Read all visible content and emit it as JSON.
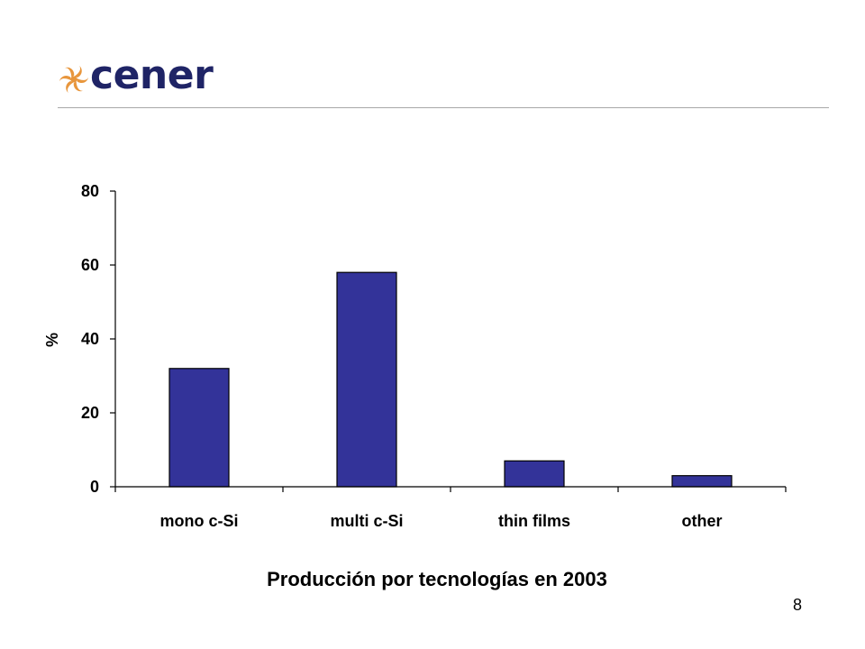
{
  "logo": {
    "text": "cener",
    "icon": "cener-swirl-icon",
    "text_color": "#1f2466",
    "icon_color": "#e8963c"
  },
  "chart_data": {
    "type": "bar",
    "categories": [
      "mono c-Si",
      "multi c-Si",
      "thin films",
      "other"
    ],
    "values": [
      32,
      58,
      7,
      3
    ],
    "title": "",
    "xlabel": "",
    "ylabel": "%",
    "ylim": [
      0,
      80
    ],
    "yticks": [
      0,
      20,
      40,
      60,
      80
    ],
    "grid": false,
    "legend": "none",
    "bar_color": "#333399"
  },
  "caption": "Producción por tecnologías en 2003",
  "page_number": "8"
}
